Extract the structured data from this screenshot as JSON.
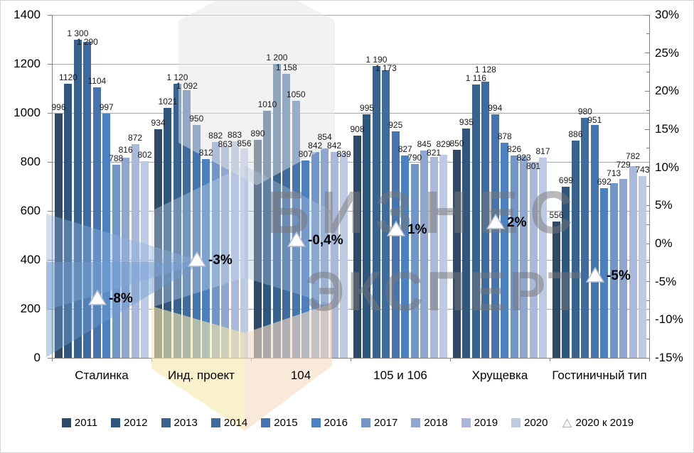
{
  "chart_data": {
    "type": "bar",
    "title": "",
    "categories": [
      "Сталинка",
      "Инд. проект",
      "104",
      "105 и 106",
      "Хрущевка",
      "Гостиничный тип"
    ],
    "series": [
      {
        "name": "2011",
        "color": "#2E4A68",
        "values": [
          996,
          934,
          890,
          908,
          850,
          556
        ],
        "labels": [
          "996",
          "934",
          "890",
          "908",
          "850",
          "556"
        ]
      },
      {
        "name": "2012",
        "color": "#30567D",
        "values": [
          1120,
          1021,
          1010,
          995,
          935,
          699
        ],
        "labels": [
          "1120",
          "1021",
          "1010",
          "995",
          "935",
          "699"
        ]
      },
      {
        "name": "2013",
        "color": "#3A628F",
        "values": [
          1300,
          1120,
          1200,
          1190,
          1116,
          886
        ],
        "labels": [
          "1 300",
          "1 120",
          "1 200",
          "1 190",
          "1 116",
          "886"
        ]
      },
      {
        "name": "2014",
        "color": "#3E6BA0",
        "values": [
          1290,
          1092,
          1158,
          1173,
          1128,
          980
        ],
        "labels": [
          "1 290",
          "1 092",
          "1 158",
          "1 173",
          "1 128",
          "980"
        ]
      },
      {
        "name": "2015",
        "color": "#4475B1",
        "values": [
          1104,
          950,
          1050,
          925,
          994,
          951
        ],
        "labels": [
          "1104",
          "950",
          "1050",
          "925",
          "994",
          "951"
        ]
      },
      {
        "name": "2016",
        "color": "#4C80C0",
        "values": [
          997,
          812,
          807,
          827,
          878,
          692
        ],
        "labels": [
          "997",
          "812",
          "807",
          "827",
          "878",
          "692"
        ]
      },
      {
        "name": "2017",
        "color": "#7495C8",
        "values": [
          788,
          882,
          842,
          790,
          826,
          713
        ],
        "labels": [
          "788",
          "882",
          "842",
          "790",
          "826",
          "713"
        ]
      },
      {
        "name": "2018",
        "color": "#8FA6D1",
        "values": [
          816,
          863,
          854,
          845,
          823,
          729
        ],
        "labels": [
          "816",
          "863",
          "854",
          "845",
          "823",
          "729"
        ]
      },
      {
        "name": "2019",
        "color": "#A9B8DB",
        "values": [
          872,
          883,
          842,
          821,
          801,
          782
        ],
        "labels": [
          "872",
          "883",
          "842",
          "821",
          "801",
          "782"
        ]
      },
      {
        "name": "2020",
        "color": "#BECAE3",
        "values": [
          802,
          856,
          839,
          829,
          817,
          743
        ],
        "labels": [
          "802",
          "856",
          "839",
          "829",
          "817",
          "743"
        ]
      }
    ],
    "change_series": {
      "name": "2020 к 2019",
      "marker": "triangle-outline-icon",
      "values_pct": [
        -8,
        -3,
        -0.4,
        1,
        2,
        -5
      ],
      "labels": [
        "-8%",
        "-3%",
        "-0,4%",
        "1%",
        "2%",
        "-5%"
      ]
    },
    "left_axis": {
      "min": 0,
      "max": 1400,
      "step": 200,
      "ticks": [
        "0",
        "200",
        "400",
        "600",
        "800",
        "1000",
        "1200",
        "1400"
      ]
    },
    "right_axis": {
      "min": -15,
      "max": 30,
      "step": 5,
      "ticks": [
        "-15%",
        "-10%",
        "-5%",
        "0%",
        "5%",
        "10%",
        "15%",
        "20%",
        "25%",
        "30%"
      ]
    },
    "grid": true,
    "legend_position": "bottom"
  },
  "watermark": {
    "line1": "БИЗНЕС",
    "line2": "ЭКСПЕРТ"
  },
  "colors": {
    "gridline": "#a6a6a6",
    "axis": "#808080",
    "label_text": "#1a1a1a",
    "annotation_triangle_fill": "#fdfdfd",
    "annotation_triangle_stroke": "#b3bccb",
    "watermark_gray": "#777777",
    "watermark_yellow": "#f5e9ad",
    "watermark_peach": "#f6dcc4",
    "watermark_blue": "#6f9ccf"
  }
}
